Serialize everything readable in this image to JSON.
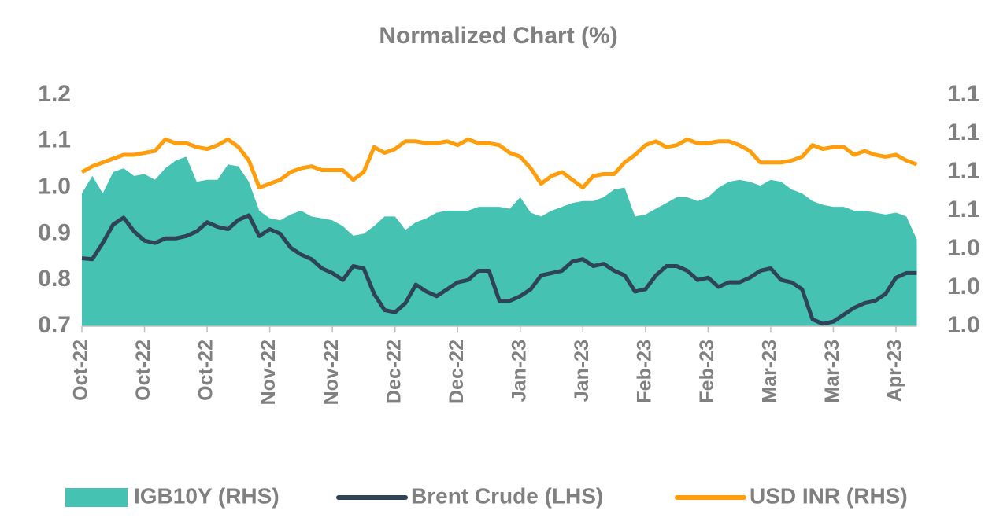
{
  "chart_data": {
    "type": "line",
    "title": "Normalized Chart (%)",
    "categories": [
      "Oct-22",
      null,
      null,
      null,
      null,
      null,
      "Oct-22",
      null,
      null,
      null,
      null,
      null,
      "Oct-22",
      null,
      null,
      null,
      null,
      null,
      "Nov-22",
      null,
      null,
      null,
      null,
      null,
      "Nov-22",
      null,
      null,
      null,
      null,
      null,
      "Dec-22",
      null,
      null,
      null,
      null,
      null,
      "Dec-22",
      null,
      null,
      null,
      null,
      null,
      "Jan-23",
      null,
      null,
      null,
      null,
      null,
      "Jan-23",
      null,
      null,
      null,
      null,
      null,
      "Feb-23",
      null,
      null,
      null,
      null,
      null,
      "Feb-23",
      null,
      null,
      null,
      null,
      null,
      "Mar-23",
      null,
      null,
      null,
      null,
      null,
      "Mar-23",
      null,
      null,
      null,
      null,
      null,
      "Apr-23",
      null,
      null
    ],
    "ylim": [
      0.7,
      1.2
    ],
    "yticks": [
      0.7,
      0.8,
      0.9,
      {
        "value": 1,
        "label": "1.0"
      },
      1.1,
      1.2
    ],
    "y2lim": [
      1.0,
      1.12
    ],
    "y2ticks": [
      {
        "value": 1.0,
        "label": "1.0"
      },
      {
        "value": 1.02,
        "label": "1.0"
      },
      {
        "value": 1.04,
        "label": "1.0"
      },
      {
        "value": 1.06,
        "label": "1.1"
      },
      {
        "value": 1.08,
        "label": "1.1"
      },
      {
        "value": 1.1,
        "label": "1.1"
      },
      {
        "value": 1.12,
        "label": "1.1"
      }
    ],
    "grid": false,
    "legend": "bottom",
    "series": [
      {
        "name": "IGB10Y (RHS)",
        "type": "area",
        "axis": "y2",
        "color": "#45c2b1",
        "values": [
          1.069,
          1.078,
          1.069,
          1.08,
          1.082,
          1.078,
          1.079,
          1.076,
          1.082,
          1.086,
          1.088,
          1.075,
          1.076,
          1.076,
          1.084,
          1.083,
          1.075,
          1.06,
          1.056,
          1.055,
          1.058,
          1.06,
          1.057,
          1.056,
          1.055,
          1.052,
          1.047,
          1.048,
          1.052,
          1.057,
          1.057,
          1.05,
          1.054,
          1.056,
          1.059,
          1.06,
          1.06,
          1.06,
          1.062,
          1.062,
          1.062,
          1.061,
          1.067,
          1.059,
          1.057,
          1.06,
          1.062,
          1.064,
          1.065,
          1.065,
          1.067,
          1.071,
          1.072,
          1.057,
          1.058,
          1.061,
          1.064,
          1.067,
          1.067,
          1.065,
          1.067,
          1.072,
          1.075,
          1.076,
          1.075,
          1.073,
          1.076,
          1.075,
          1.071,
          1.069,
          1.065,
          1.063,
          1.062,
          1.062,
          1.06,
          1.06,
          1.059,
          1.058,
          1.059,
          1.057,
          1.045
        ]
      },
      {
        "name": "Brent Crude (LHS)",
        "type": "line",
        "axis": "y",
        "color": "#2f4358",
        "values": [
          0.847,
          0.845,
          0.88,
          0.92,
          0.935,
          0.905,
          0.885,
          0.88,
          0.89,
          0.89,
          0.895,
          0.905,
          0.925,
          0.915,
          0.91,
          0.93,
          0.94,
          0.895,
          0.91,
          0.9,
          0.87,
          0.855,
          0.845,
          0.825,
          0.815,
          0.8,
          0.83,
          0.825,
          0.77,
          0.735,
          0.73,
          0.75,
          0.79,
          0.775,
          0.765,
          0.78,
          0.795,
          0.8,
          0.82,
          0.82,
          0.755,
          0.755,
          0.765,
          0.78,
          0.81,
          0.815,
          0.82,
          0.84,
          0.845,
          0.83,
          0.835,
          0.82,
          0.81,
          0.775,
          0.78,
          0.81,
          0.83,
          0.83,
          0.82,
          0.8,
          0.805,
          0.785,
          0.795,
          0.795,
          0.805,
          0.82,
          0.825,
          0.8,
          0.795,
          0.78,
          0.715,
          0.705,
          0.71,
          0.725,
          0.74,
          0.75,
          0.755,
          0.77,
          0.805,
          0.815,
          0.815
        ]
      },
      {
        "name": "USD INR (RHS)",
        "type": "line",
        "axis": "y2",
        "color": "#ff9e0d",
        "values": [
          1.08,
          1.083,
          1.085,
          1.087,
          1.089,
          1.089,
          1.09,
          1.091,
          1.097,
          1.095,
          1.095,
          1.093,
          1.092,
          1.094,
          1.097,
          1.093,
          1.086,
          1.072,
          1.074,
          1.076,
          1.08,
          1.082,
          1.083,
          1.081,
          1.081,
          1.081,
          1.076,
          1.08,
          1.093,
          1.09,
          1.092,
          1.096,
          1.096,
          1.095,
          1.095,
          1.096,
          1.094,
          1.097,
          1.095,
          1.095,
          1.094,
          1.09,
          1.088,
          1.082,
          1.074,
          1.078,
          1.08,
          1.076,
          1.072,
          1.078,
          1.079,
          1.079,
          1.085,
          1.089,
          1.094,
          1.096,
          1.093,
          1.094,
          1.097,
          1.095,
          1.095,
          1.096,
          1.096,
          1.094,
          1.091,
          1.085,
          1.085,
          1.085,
          1.086,
          1.088,
          1.094,
          1.092,
          1.093,
          1.093,
          1.089,
          1.091,
          1.089,
          1.088,
          1.089,
          1.086,
          1.084
        ]
      }
    ]
  }
}
